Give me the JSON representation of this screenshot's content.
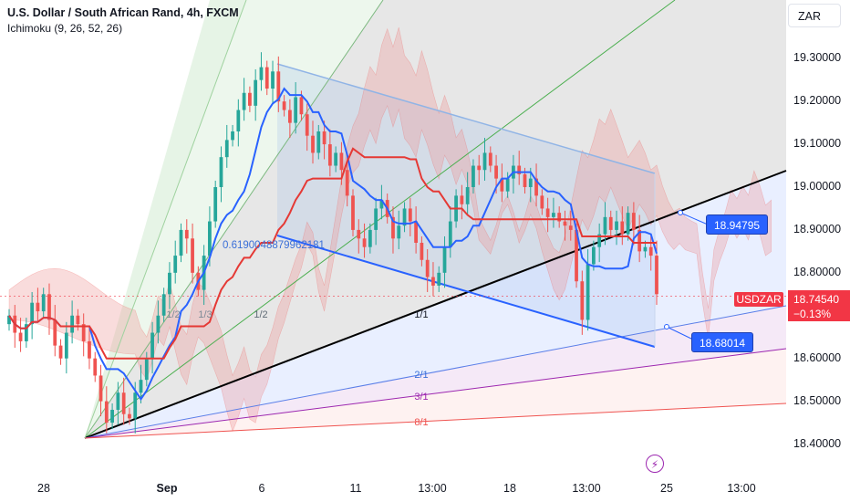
{
  "header": {
    "title": "U.S. Dollar / South African Rand, 4h, FXCM",
    "indicator": "Ichimoku (9, 26, 52, 26)",
    "currency": "ZAR"
  },
  "chart_data": {
    "type": "candlestick",
    "symbol": "USDZAR",
    "price_axis": {
      "ticks": [
        "19.30000",
        "19.20000",
        "19.10000",
        "19.00000",
        "18.90000",
        "18.80000",
        "18.70000",
        "18.60000",
        "18.50000",
        "18.40000"
      ],
      "range": [
        18.35,
        19.39
      ]
    },
    "time_axis": {
      "ticks": [
        {
          "label": "28",
          "bold": false
        },
        {
          "label": "Sep",
          "bold": true
        },
        {
          "label": "6",
          "bold": false
        },
        {
          "label": "11",
          "bold": false
        },
        {
          "label": "13:00",
          "bold": false
        },
        {
          "label": "18",
          "bold": false
        },
        {
          "label": "13:00",
          "bold": false
        },
        {
          "label": "25",
          "bold": false
        },
        {
          "label": "13:00",
          "bold": false
        }
      ]
    },
    "last_price": "18.74540",
    "change": "−0.13%",
    "callouts": [
      "18.94795",
      "18.68014"
    ],
    "fib_label": "0.6190048879962181",
    "fan_labels": [
      "1/2",
      "1/3",
      "1/2",
      "1/1",
      "2/1",
      "3/1",
      "8/1"
    ],
    "close_prices": [
      18.7,
      18.66,
      18.64,
      18.68,
      18.73,
      18.71,
      18.75,
      18.69,
      18.63,
      18.6,
      18.66,
      18.7,
      18.68,
      18.64,
      18.6,
      18.56,
      18.5,
      18.45,
      18.48,
      18.52,
      18.47,
      18.46,
      18.52,
      18.55,
      18.6,
      18.66,
      18.7,
      18.75,
      18.8,
      18.84,
      18.9,
      18.88,
      18.8,
      18.76,
      18.84,
      18.92,
      19.0,
      19.07,
      19.11,
      19.13,
      19.18,
      19.22,
      19.19,
      19.25,
      19.28,
      19.23,
      19.27,
      19.2,
      19.18,
      19.15,
      19.21,
      19.17,
      19.12,
      19.08,
      19.13,
      19.1,
      19.05,
      19.08,
      19.04,
      18.98,
      18.9,
      18.88,
      18.86,
      18.9,
      18.95,
      18.97,
      18.93,
      18.88,
      18.91,
      18.95,
      18.92,
      18.87,
      18.83,
      18.79,
      18.77,
      18.8,
      18.86,
      18.92,
      18.98,
      18.96,
      19.0,
      19.05,
      19.04,
      19.08,
      19.05,
      19.02,
      18.99,
      19.02,
      19.05,
      19.03,
      19.0,
      19.02,
      18.98,
      18.95,
      18.93,
      18.94,
      18.92,
      18.91,
      18.9,
      18.78,
      18.69,
      18.82,
      18.86,
      18.89,
      18.93,
      18.9,
      18.92,
      18.89,
      18.94,
      18.9,
      18.85,
      18.86,
      18.84,
      18.75
    ]
  },
  "colors": {
    "up": "#26a69a",
    "down": "#ef5350",
    "tenkan": "#2962ff",
    "kijun": "#e53935",
    "kumo_bull": "#a5d6a7",
    "kumo_bear": "#ef9a9a",
    "trend": "#131722",
    "badge": "#f23645"
  }
}
